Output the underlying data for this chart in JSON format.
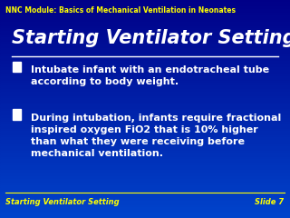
{
  "bg_color_top": "#000088",
  "bg_color_bottom": "#0044cc",
  "module_text": "NNC Module: Basics of Mechanical Ventilation in Neonates",
  "title": "Starting Ventilator Setting",
  "bullet1": "Intubate infant with an endotracheal tube\naccording to body weight.",
  "bullet2": "During intubation, infants require fractional\ninspired oxygen FiO2 that is 10% higher\nthan what they were receiving before\nmechanical ventilation.",
  "footer_left": "Starting Ventilator Setting",
  "footer_right": "Slide 7",
  "text_color": "#ffffff",
  "yellow_color": "#ffff00",
  "module_fontsize": 5.5,
  "title_fontsize": 15,
  "bullet_fontsize": 8,
  "footer_fontsize": 6
}
